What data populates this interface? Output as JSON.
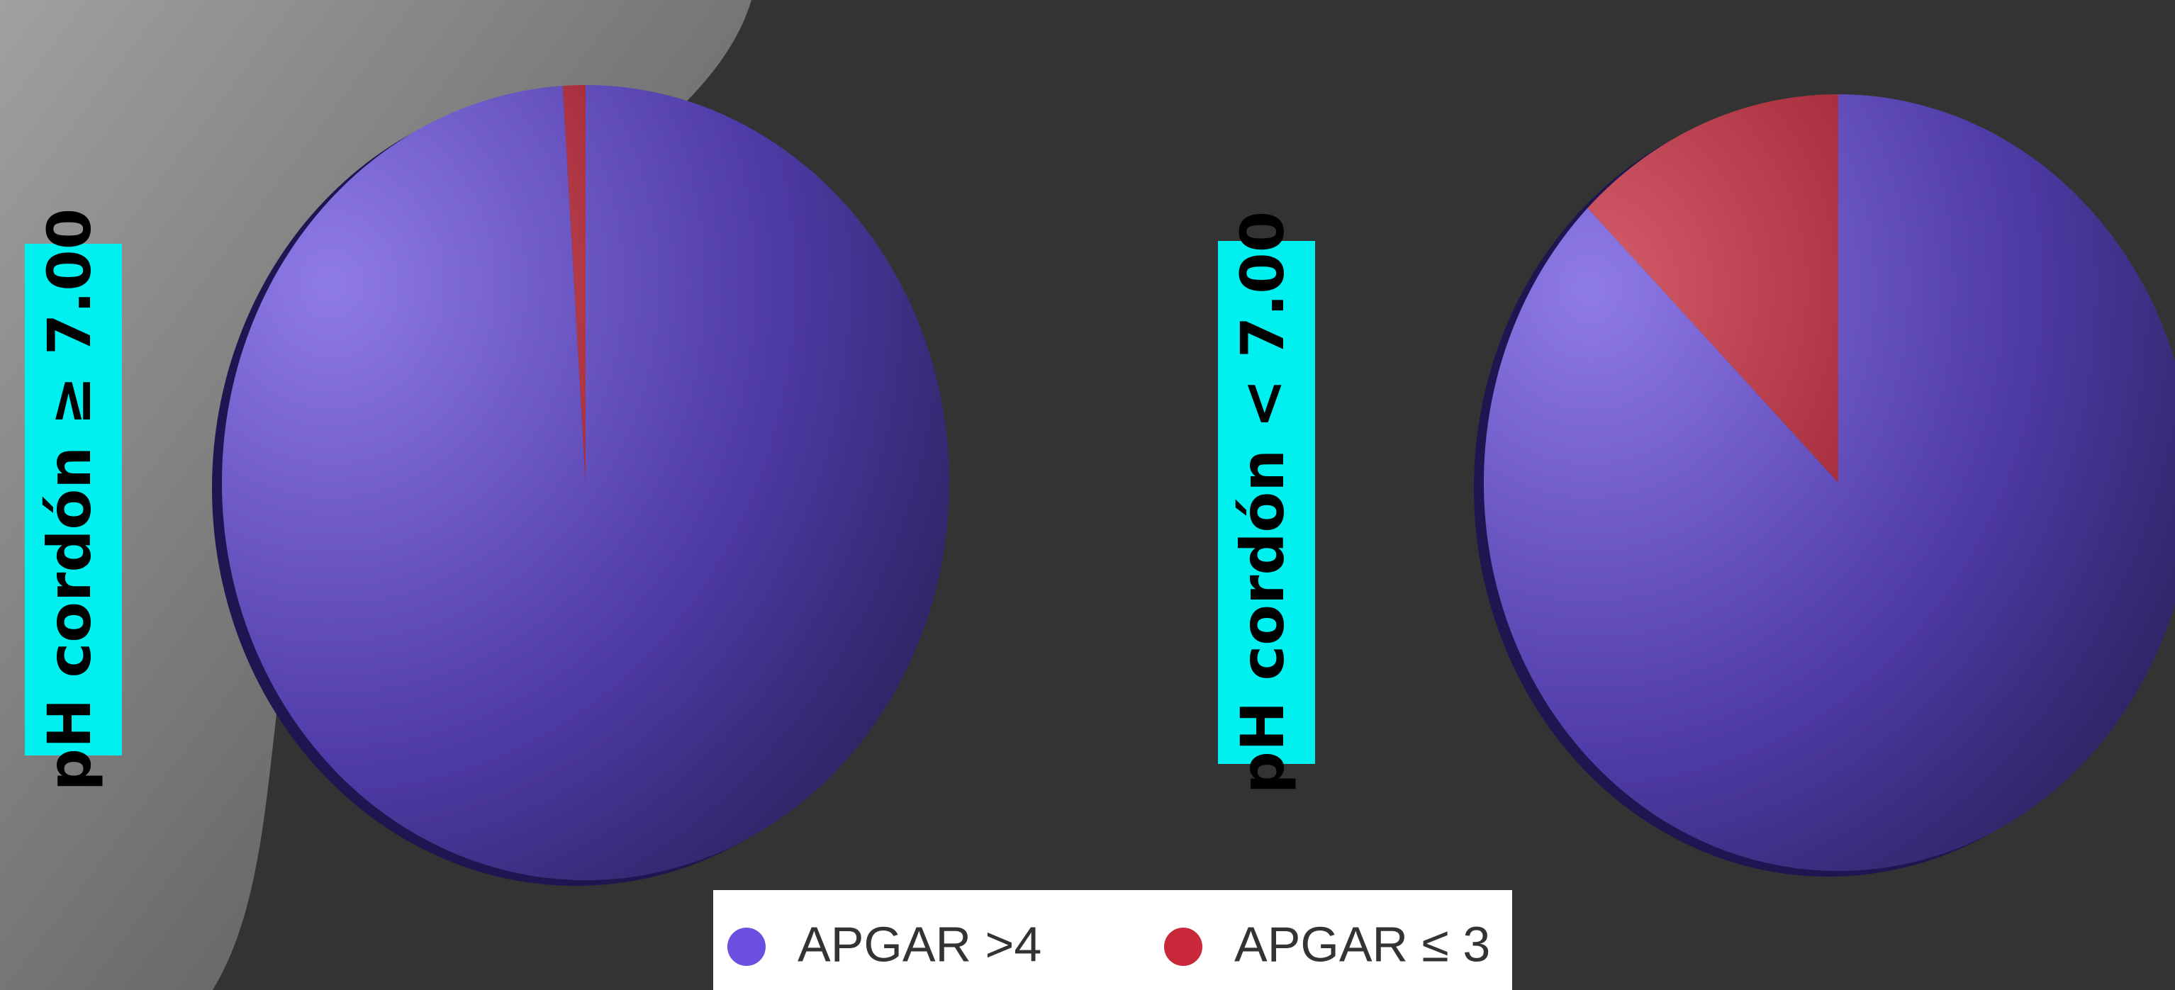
{
  "chart_data": [
    {
      "type": "pie",
      "title": "pH cordón ≥ 7.00",
      "categories": [
        "APGAR >4",
        "APGAR ≤ 3"
      ],
      "values": [
        99,
        1
      ],
      "colors": [
        "#6a4fe0",
        "#c8283a"
      ]
    },
    {
      "type": "pie",
      "title": "pH cordón < 7.00",
      "categories": [
        "APGAR >4",
        "APGAR ≤ 3"
      ],
      "values": [
        87.5,
        12.5
      ],
      "colors": [
        "#6a4fe0",
        "#c8283a"
      ]
    }
  ]
}
